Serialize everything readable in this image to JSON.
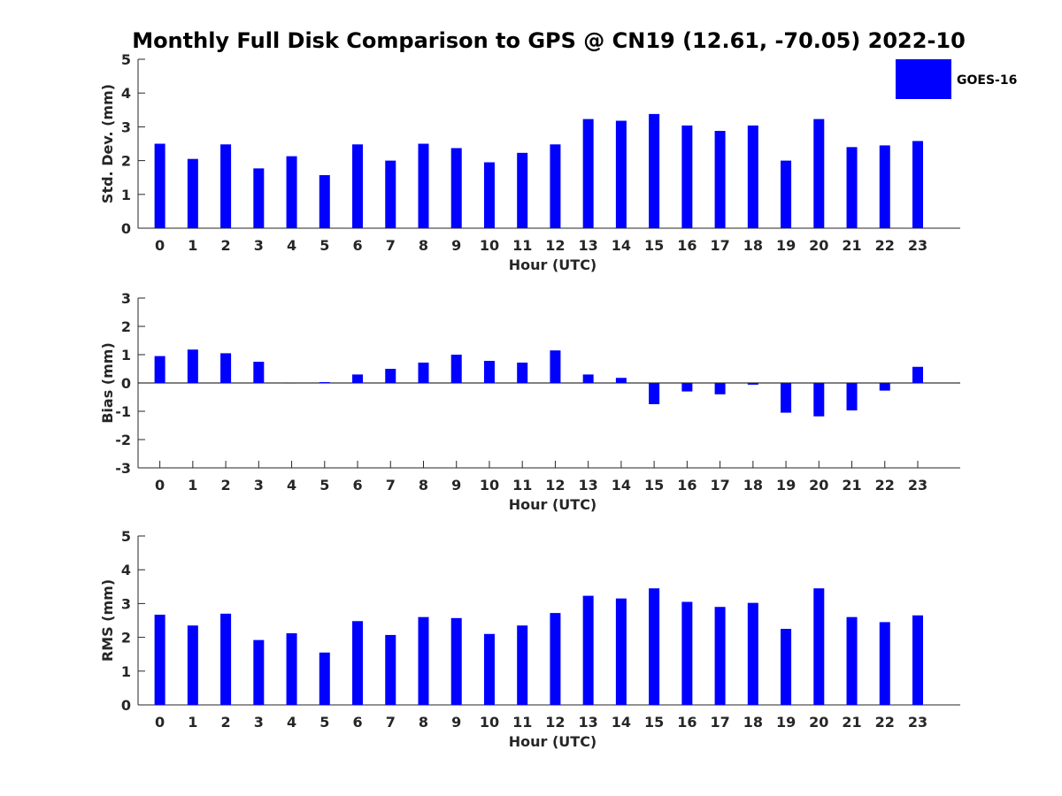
{
  "chart_data": {
    "type": "bar",
    "title": "Monthly Full Disk Comparison to GPS @ CN19 (12.61, -70.05) 2022-10",
    "legend": {
      "entries": [
        "GOES-16"
      ],
      "placement": "top-right",
      "color": "#0000ff"
    },
    "bar_color": "#0000ff",
    "grid": false,
    "categories": [
      "0",
      "1",
      "2",
      "3",
      "4",
      "5",
      "6",
      "7",
      "8",
      "9",
      "10",
      "11",
      "12",
      "13",
      "14",
      "15",
      "16",
      "17",
      "18",
      "19",
      "20",
      "21",
      "22",
      "23"
    ],
    "panels": [
      {
        "ylabel": "Std. Dev. (mm)",
        "xlabel": "Hour (UTC)",
        "ylim": [
          0,
          5
        ],
        "yticks": [
          "0",
          "1",
          "2",
          "3",
          "4",
          "5"
        ],
        "series": [
          {
            "name": "GOES-16",
            "values": [
              2.5,
              2.05,
              2.48,
              1.77,
              2.13,
              1.57,
              2.48,
              2.0,
              2.5,
              2.37,
              1.95,
              2.23,
              2.48,
              3.23,
              3.18,
              3.38,
              3.04,
              2.88,
              3.04,
              2.0,
              3.23,
              2.4,
              2.45,
              2.58
            ]
          }
        ]
      },
      {
        "ylabel": "Bias (mm)",
        "xlabel": "Hour (UTC)",
        "ylim": [
          -3,
          3
        ],
        "yticks": [
          "-3",
          "-2",
          "-1",
          "0",
          "1",
          "2",
          "3"
        ],
        "series": [
          {
            "name": "GOES-16",
            "values": [
              0.95,
              1.18,
              1.05,
              0.75,
              0.0,
              0.03,
              0.3,
              0.5,
              0.72,
              1.0,
              0.78,
              0.72,
              1.15,
              0.3,
              0.18,
              -0.75,
              -0.3,
              -0.4,
              -0.06,
              -1.05,
              -1.18,
              -0.97,
              -0.27,
              0.57
            ]
          }
        ]
      },
      {
        "ylabel": "RMS (mm)",
        "xlabel": "Hour (UTC)",
        "ylim": [
          0,
          5
        ],
        "yticks": [
          "0",
          "1",
          "2",
          "3",
          "4",
          "5"
        ],
        "series": [
          {
            "name": "GOES-16",
            "values": [
              2.67,
              2.35,
              2.7,
              1.92,
              2.12,
              1.55,
              2.48,
              2.07,
              2.6,
              2.57,
              2.1,
              2.35,
              2.72,
              3.23,
              3.15,
              3.45,
              3.05,
              2.9,
              3.02,
              2.25,
              3.45,
              2.6,
              2.45,
              2.65
            ]
          }
        ]
      }
    ]
  }
}
